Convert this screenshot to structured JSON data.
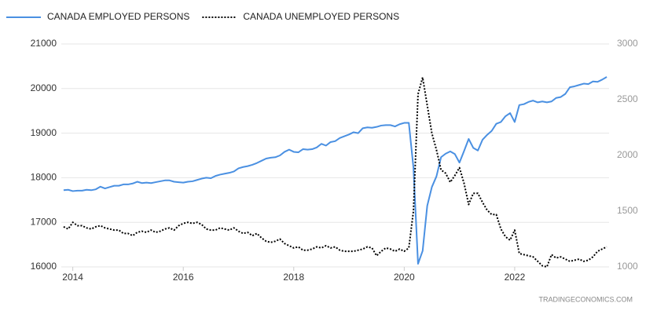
{
  "chart_data": {
    "type": "line",
    "source": "TRADINGECONOMICS.COM",
    "categories": [
      null,
      null,
      "2014",
      null,
      null,
      null,
      null,
      null,
      null,
      null,
      null,
      null,
      null,
      null,
      null,
      null,
      null,
      null,
      null,
      null,
      null,
      null,
      null,
      null,
      null,
      null,
      "2016",
      null,
      null,
      null,
      null,
      null,
      null,
      null,
      null,
      null,
      null,
      null,
      null,
      null,
      null,
      null,
      null,
      null,
      null,
      null,
      null,
      null,
      null,
      null,
      "2018",
      null,
      null,
      null,
      null,
      null,
      null,
      null,
      null,
      null,
      null,
      null,
      null,
      null,
      null,
      null,
      null,
      null,
      null,
      null,
      null,
      null,
      null,
      null,
      "2020",
      null,
      null,
      null,
      null,
      null,
      null,
      null,
      null,
      null,
      null,
      null,
      null,
      null,
      null,
      null,
      null,
      null,
      null,
      null,
      null,
      null,
      null,
      null,
      "2022",
      null,
      null,
      null,
      null,
      null,
      null,
      null,
      null,
      null,
      null,
      null,
      null,
      null,
      null,
      null,
      null,
      null,
      null,
      null,
      null
    ],
    "series": [
      {
        "name": "CANADA EMPLOYED PERSONS",
        "color": "#4a90e2",
        "dash": "solid",
        "values": [
          17720,
          17730,
          17700,
          17710,
          17710,
          17730,
          17720,
          17740,
          17800,
          17760,
          17790,
          17820,
          17820,
          17850,
          17850,
          17870,
          17910,
          17880,
          17890,
          17880,
          17900,
          17920,
          17940,
          17940,
          17910,
          17900,
          17890,
          17910,
          17920,
          17950,
          17980,
          18000,
          17990,
          18040,
          18070,
          18090,
          18110,
          18140,
          18210,
          18240,
          18260,
          18290,
          18330,
          18380,
          18430,
          18450,
          18460,
          18500,
          18580,
          18630,
          18580,
          18570,
          18640,
          18630,
          18640,
          18680,
          18760,
          18720,
          18800,
          18820,
          18890,
          18930,
          18970,
          19020,
          19000,
          19110,
          19130,
          19120,
          19140,
          19170,
          19180,
          19180,
          19150,
          19200,
          19230,
          19230,
          18230,
          16070,
          16360,
          17370,
          17790,
          18030,
          18460,
          18540,
          18590,
          18530,
          18340,
          18600,
          18870,
          18670,
          18610,
          18850,
          18960,
          19050,
          19210,
          19250,
          19380,
          19450,
          19250,
          19630,
          19650,
          19700,
          19730,
          19690,
          19710,
          19690,
          19710,
          19790,
          19810,
          19880,
          20030,
          20050,
          20080,
          20110,
          20100,
          20160,
          20150,
          20200,
          20260
        ]
      },
      {
        "name": "CANADA UNEMPLOYED PERSONS",
        "color": "#000000",
        "dash": "dotted",
        "axis": "y2",
        "values": [
          1360,
          1340,
          1400,
          1370,
          1370,
          1350,
          1340,
          1360,
          1370,
          1350,
          1340,
          1330,
          1330,
          1300,
          1300,
          1280,
          1310,
          1320,
          1310,
          1330,
          1310,
          1320,
          1340,
          1350,
          1330,
          1370,
          1390,
          1400,
          1390,
          1400,
          1380,
          1340,
          1330,
          1330,
          1350,
          1340,
          1330,
          1350,
          1320,
          1300,
          1310,
          1280,
          1300,
          1260,
          1230,
          1220,
          1230,
          1250,
          1210,
          1190,
          1170,
          1180,
          1150,
          1150,
          1160,
          1180,
          1170,
          1190,
          1170,
          1180,
          1150,
          1140,
          1140,
          1140,
          1150,
          1160,
          1180,
          1170,
          1100,
          1140,
          1170,
          1160,
          1140,
          1160,
          1140,
          1170,
          1500,
          2550,
          2700,
          2450,
          2200,
          2050,
          1870,
          1840,
          1760,
          1820,
          1890,
          1750,
          1560,
          1660,
          1660,
          1580,
          1510,
          1470,
          1470,
          1340,
          1270,
          1240,
          1330,
          1120,
          1110,
          1100,
          1090,
          1050,
          1010,
          1000,
          1110,
          1080,
          1090,
          1070,
          1050,
          1060,
          1070,
          1050,
          1060,
          1090,
          1140,
          1160,
          1180
        ]
      }
    ],
    "ylim": [
      16000,
      21000
    ],
    "yticks": [
      16000,
      17000,
      18000,
      19000,
      20000,
      21000
    ],
    "y2lim": [
      1000,
      3000
    ],
    "y2ticks": [
      1000,
      1500,
      2000,
      2500,
      3000
    ],
    "grid": true,
    "legend": "top-left"
  }
}
